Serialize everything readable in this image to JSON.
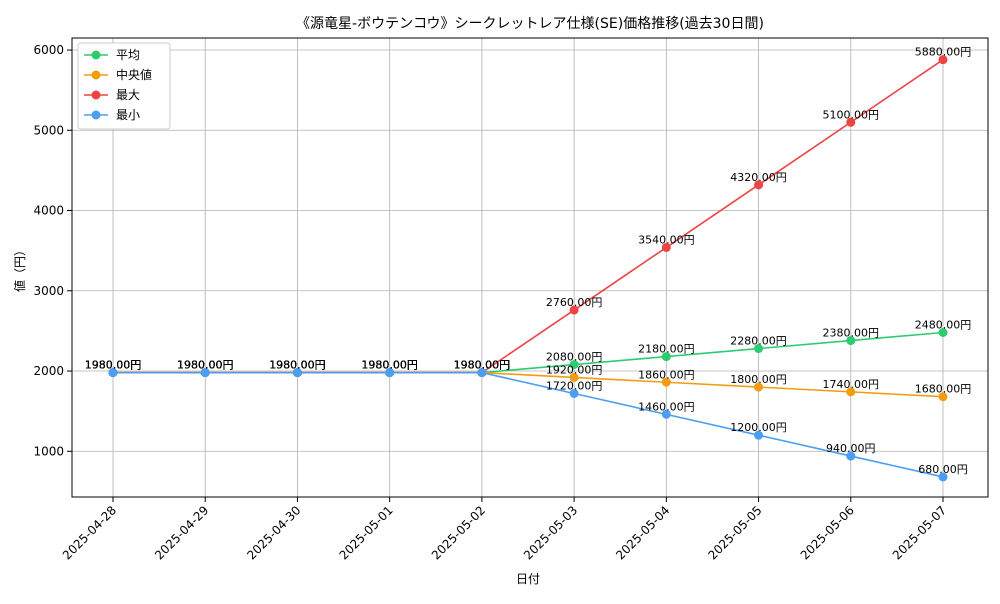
{
  "chart_data": {
    "type": "line",
    "title": "《源竜星-ボウテンコウ》シークレットレア仕様(SE)価格推移(過去30日間)",
    "xlabel": "日付",
    "ylabel": "値（円）",
    "categories": [
      "2025-04-28",
      "2025-04-29",
      "2025-04-30",
      "2025-05-01",
      "2025-05-02",
      "2025-05-03",
      "2025-05-04",
      "2025-05-05",
      "2025-05-06",
      "2025-05-07"
    ],
    "ylim": [
      430,
      6150
    ],
    "yticks": [
      1000,
      2000,
      3000,
      4000,
      5000,
      6000
    ],
    "grid": true,
    "legend_position": "top-left",
    "label_suffix": "円",
    "series": [
      {
        "name": "平均",
        "color": "#2ecc71",
        "values": [
          1980,
          1980,
          1980,
          1980,
          1980,
          2080,
          2180,
          2280,
          2380,
          2480
        ]
      },
      {
        "name": "中央値",
        "color": "#f39c12",
        "values": [
          1980,
          1980,
          1980,
          1980,
          1980,
          1920,
          1860,
          1800,
          1740,
          1680
        ]
      },
      {
        "name": "最大",
        "color": "#ef4444",
        "values": [
          1980,
          1980,
          1980,
          1980,
          1980,
          2760,
          3540,
          4320,
          5100,
          5880
        ]
      },
      {
        "name": "最小",
        "color": "#4a9ff5",
        "values": [
          1980,
          1980,
          1980,
          1980,
          1980,
          1720,
          1460,
          1200,
          940,
          680
        ]
      }
    ]
  }
}
